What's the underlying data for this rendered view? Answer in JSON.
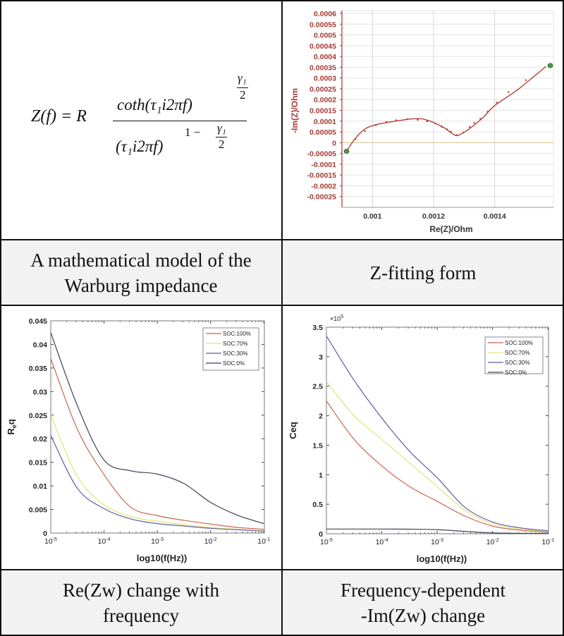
{
  "panels": {
    "equation": {
      "lhs": "Z(f) = R",
      "numerator": "coth(τ₁i2πf)",
      "num_exp_top": "γ₁",
      "num_exp_bottom": "2",
      "denominator": "(τ₁i2πf)",
      "den_exp_prefix": "1 −",
      "den_exp_top": "γ₁",
      "den_exp_bottom": "2"
    },
    "captions": {
      "top_left": [
        "A mathematical model of the",
        "Warburg impedance"
      ],
      "top_right": [
        "Z-fitting form"
      ],
      "bottom_left": [
        "Re(Zw) change with",
        "frequency"
      ],
      "bottom_right": [
        "Frequency-dependent",
        "-Im(Zw) change"
      ]
    }
  },
  "chart_data": [
    {
      "id": "nyquist",
      "type": "scatter",
      "title": "",
      "xlabel": "Re(Z)/Ohm",
      "ylabel": "-Im(Z)/Ohm",
      "xlim": [
        0.0009,
        0.00159
      ],
      "ylim": [
        -0.0003,
        0.0006
      ],
      "xticks": [
        0.001,
        0.0012,
        0.0014
      ],
      "yticks": [
        0.0006,
        0.00055,
        0.0005,
        0.00045,
        0.0004,
        0.00035,
        0.0003,
        0.00025,
        0.0002,
        0.00015,
        0.0001,
        5e-05,
        0,
        -5e-05,
        -0.0001,
        -0.00015,
        -0.0002,
        -0.00025
      ],
      "grid": true,
      "colors": {
        "axis": "#a23a33",
        "fit": "#b2413a",
        "points": "#b2413a",
        "zero_line": "#d9c98f",
        "endpoints": "#4f9a4a"
      },
      "fit_line": [
        [
          0.000915,
          -4e-05
        ],
        [
          0.000943,
          1.86e-05
        ],
        [
          0.000974,
          6.23e-05
        ],
        [
          0.001013,
          8.4e-05
        ],
        [
          0.001075,
          0.0001
        ],
        [
          0.001136,
          0.000111
        ],
        [
          0.001176,
          0.000106
        ],
        [
          0.00123,
          7.3e-05
        ],
        [
          0.001261,
          4.26e-05
        ],
        [
          0.00128,
          3.4e-05
        ],
        [
          0.001315,
          6.23e-05
        ],
        [
          0.001362,
          0.000117
        ],
        [
          0.0014,
          0.000172
        ],
        [
          0.001477,
          0.000248
        ],
        [
          0.001568,
          0.000354
        ]
      ],
      "data_points": [
        [
          0.000944,
          1.64e-05
        ],
        [
          0.000975,
          5.35e-05
        ],
        [
          0.001011,
          8.09e-05
        ],
        [
          0.001045,
          9.62e-05
        ],
        [
          0.001078,
          0.000104
        ],
        [
          0.001113,
          0.000109
        ],
        [
          0.001148,
          0.000106
        ],
        [
          0.001179,
          9.94e-05
        ],
        [
          0.001206,
          8.85e-05
        ],
        [
          0.001227,
          7.32e-05
        ],
        [
          0.001244,
          6.23e-05
        ],
        [
          0.001256,
          5.14e-05
        ],
        [
          0.001275,
          3.5e-05
        ],
        [
          0.001298,
          4.81e-05
        ],
        [
          0.001318,
          7.32e-05
        ],
        [
          0.001333,
          9.18e-05
        ],
        [
          0.001353,
          0.000111
        ],
        [
          0.001377,
          0.000144
        ],
        [
          0.001407,
          0.000186
        ],
        [
          0.001445,
          0.000235
        ],
        [
          0.001502,
          0.00029
        ]
      ],
      "endpoints": [
        [
          0.000915,
          -4e-05
        ],
        [
          0.001582,
          0.000358
        ]
      ]
    },
    {
      "id": "req",
      "type": "line",
      "xscale": "log",
      "xlabel": "log10(f(Hz))",
      "ylabel": "Req",
      "xlim": [
        1e-05,
        0.1
      ],
      "ylim": [
        0,
        0.045
      ],
      "xticks": [
        1e-05,
        0.0001,
        0.001,
        0.01,
        0.1
      ],
      "xtick_exponents": [
        -5,
        -4,
        -3,
        -2,
        -1
      ],
      "yticks": [
        0,
        0.005,
        0.01,
        0.015,
        0.02,
        0.025,
        0.03,
        0.035,
        0.04,
        0.045
      ],
      "grid": false,
      "legend": "top-right",
      "x": [
        1e-05,
        3.16e-05,
        0.0001,
        0.000316,
        0.001,
        0.00316,
        0.01,
        0.0316,
        0.1
      ],
      "series": [
        {
          "name": "SOC:100%",
          "color": "#c8644e",
          "values": [
            0.037,
            0.022,
            0.0124,
            0.0055,
            0.0037,
            0.0027,
            0.0019,
            0.0012,
            0.0008
          ]
        },
        {
          "name": "SOC:70%",
          "color": "#e6e27a",
          "values": [
            0.025,
            0.012,
            0.006,
            0.0035,
            0.0025,
            0.0018,
            0.0012,
            0.0008,
            0.0005
          ]
        },
        {
          "name": "SOC:30%",
          "color": "#5b5ea6",
          "values": [
            0.0207,
            0.0095,
            0.0052,
            0.003,
            0.002,
            0.0015,
            0.001,
            0.0007,
            0.0004
          ]
        },
        {
          "name": "SOC:0%",
          "color": "#3e4352",
          "values": [
            0.0425,
            0.027,
            0.0155,
            0.0132,
            0.0125,
            0.0105,
            0.0065,
            0.0038,
            0.002
          ]
        }
      ]
    },
    {
      "id": "ceq",
      "type": "line",
      "xscale": "log",
      "xlabel": "log10(f(Hz))",
      "ylabel": "Ceq",
      "y_multiplier": {
        "base": "×10",
        "exponent": "5"
      },
      "xlim": [
        1e-05,
        0.1
      ],
      "ylim": [
        0,
        3.5
      ],
      "xticks": [
        1e-05,
        0.0001,
        0.001,
        0.01,
        0.1
      ],
      "xtick_exponents": [
        -5,
        -4,
        -3,
        -2,
        -1
      ],
      "yticks": [
        0,
        0.5,
        1,
        1.5,
        2,
        2.5,
        3,
        3.5
      ],
      "grid": false,
      "legend": "top-right",
      "x": [
        1e-05,
        3.16e-05,
        0.0001,
        0.000316,
        0.001,
        0.00316,
        0.01,
        0.0316,
        0.1
      ],
      "series": [
        {
          "name": "SOC:100%",
          "color": "#c8644e",
          "values": [
            2.25,
            1.6,
            1.15,
            0.8,
            0.55,
            0.3,
            0.13,
            0.06,
            0.03
          ]
        },
        {
          "name": "SOC:70%",
          "color": "#e6e27a",
          "values": [
            2.58,
            2.0,
            1.6,
            1.2,
            0.8,
            0.4,
            0.17,
            0.08,
            0.04
          ]
        },
        {
          "name": "SOC:30%",
          "color": "#5b5ea6",
          "values": [
            3.35,
            2.6,
            1.96,
            1.4,
            0.95,
            0.45,
            0.2,
            0.1,
            0.05
          ]
        },
        {
          "name": "SOC:0%",
          "color": "#3e4352",
          "values": [
            0.08,
            0.08,
            0.08,
            0.078,
            0.07,
            0.04,
            0.015,
            0.008,
            0.005
          ]
        }
      ]
    }
  ]
}
